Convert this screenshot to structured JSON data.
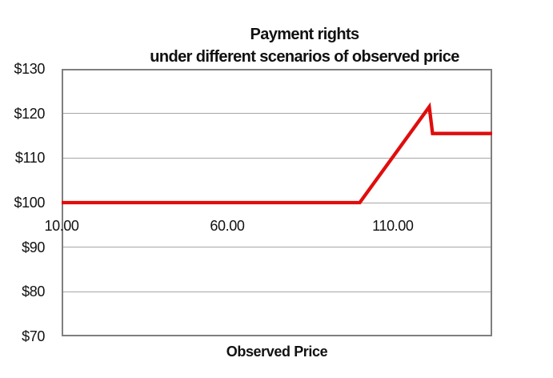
{
  "title": {
    "line1": "Payment rights",
    "line2": "under different scenarios of observed price"
  },
  "x_axis": {
    "title": "Observed Price",
    "ticks": [
      {
        "value": 10,
        "label": "10.00"
      },
      {
        "value": 60,
        "label": "60.00"
      },
      {
        "value": 110,
        "label": "110.00"
      }
    ],
    "crossing_value": 100
  },
  "y_axis": {
    "ticks": [
      {
        "value": 130,
        "label": "$130"
      },
      {
        "value": 120,
        "label": "$120"
      },
      {
        "value": 110,
        "label": "$110"
      },
      {
        "value": 100,
        "label": "$100"
      },
      {
        "value": 90,
        "label": "$90"
      },
      {
        "value": 80,
        "label": "$80"
      },
      {
        "value": 70,
        "label": "$70"
      }
    ]
  },
  "chart_data": {
    "type": "line",
    "title": "Payment rights under different scenarios of observed price",
    "xlabel": "Observed Price",
    "ylabel": "",
    "xlim": [
      10,
      140
    ],
    "ylim": [
      70,
      130
    ],
    "gridlines_y": [
      120,
      110,
      100,
      90,
      80
    ],
    "grid": "horizontal-only",
    "legend_position": "none",
    "series": [
      {
        "name": "Payment rights",
        "color": "#e00d0d",
        "points": [
          {
            "x": 10,
            "y": 100
          },
          {
            "x": 100,
            "y": 100
          },
          {
            "x": 121,
            "y": 121.5
          },
          {
            "x": 122,
            "y": 115.5
          },
          {
            "x": 140,
            "y": 115.5
          }
        ]
      }
    ]
  }
}
